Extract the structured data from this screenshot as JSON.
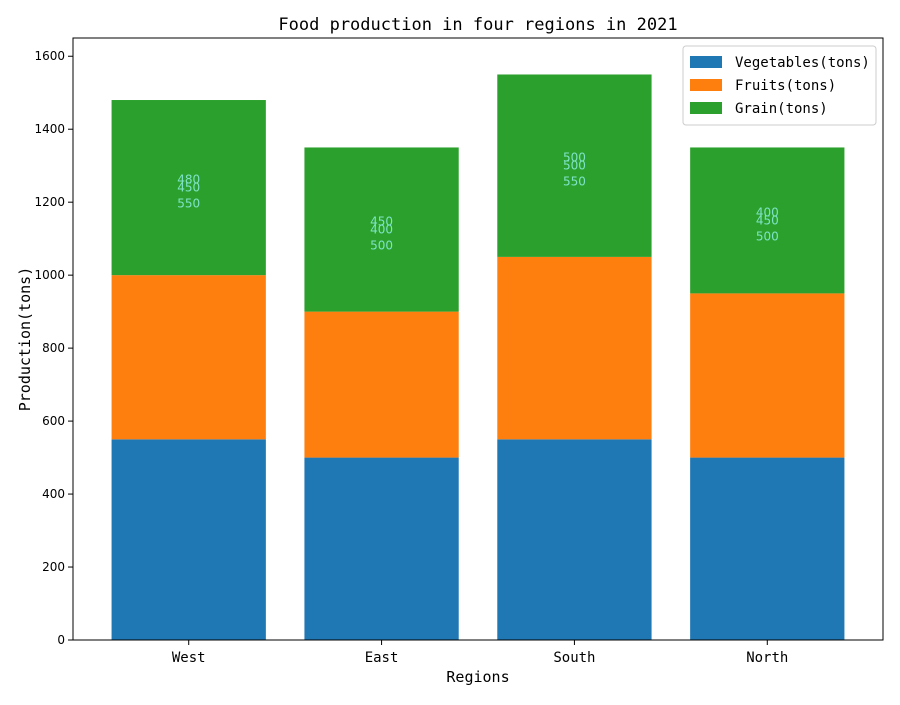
{
  "chart_data": {
    "type": "bar",
    "stacked": true,
    "title": "Food production in four regions in 2021",
    "xlabel": "Regions",
    "ylabel": "Production(tons)",
    "categories": [
      "West",
      "East",
      "South",
      "North"
    ],
    "ylim": [
      0,
      1650
    ],
    "yticks": [
      0,
      200,
      400,
      600,
      800,
      1000,
      1200,
      1400,
      1600
    ],
    "grid": false,
    "legend_position": "top-right",
    "series": [
      {
        "name": "Vegetables(tons)",
        "values": [
          550,
          500,
          550,
          500
        ],
        "color": "#1f77b4"
      },
      {
        "name": "Fruits(tons)",
        "values": [
          450,
          400,
          500,
          450
        ],
        "color": "#ff7f0e"
      },
      {
        "name": "Grain(tons)",
        "values": [
          480,
          450,
          500,
          400
        ],
        "color": "#2ca02c"
      }
    ],
    "data_label_color": "#7fe3c7"
  }
}
